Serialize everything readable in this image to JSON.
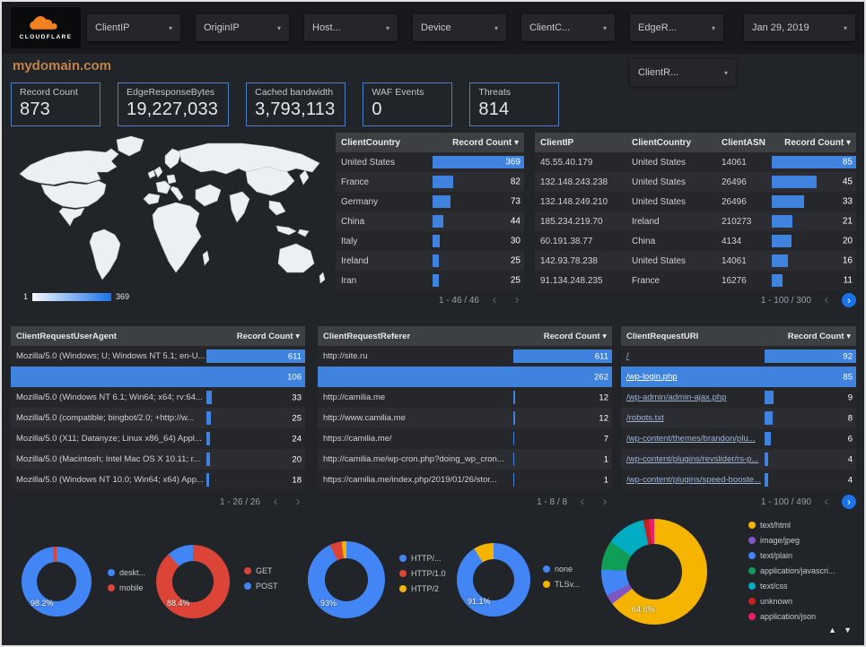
{
  "brand": {
    "name": "CLOUDFLARE"
  },
  "icons": {
    "caret_down": "▾",
    "sort_down": "▾",
    "chevron_left": "‹",
    "chevron_right": "›",
    "up_arrow": "▲",
    "down_arrow": "▼"
  },
  "colors": {
    "accent_blue": "#4083de",
    "kpi_border": "#4e7fc0",
    "brand_orange": "#f48120",
    "brand_orange_light": "#faad3f",
    "title": "#c08448",
    "map_max": "#1a73e8",
    "selected_row": "#4083de"
  },
  "topbar": {
    "filters": [
      "ClientIP",
      "OriginIP",
      "Host...",
      "Device",
      "ClientC...",
      "EdgeR..."
    ],
    "date_filter": "Jan 29, 2019",
    "secondary_filter": "ClientR..."
  },
  "page_title": "mydomain.com",
  "kpis": [
    {
      "label": "Record Count",
      "value": "873"
    },
    {
      "label": "EdgeResponseBytes",
      "value": "19,227,033"
    },
    {
      "label": "Cached bandwidth",
      "value": "3,793,113"
    },
    {
      "label": "WAF Events",
      "value": "0"
    },
    {
      "label": "Threats",
      "value": "814"
    }
  ],
  "tables": {
    "country": {
      "columns": [
        "ClientCountry",
        "Record Count"
      ],
      "sort_col": 1,
      "bar_col": 1,
      "max": 369,
      "selected_row": null,
      "rows": [
        [
          "United States",
          369
        ],
        [
          "France",
          82
        ],
        [
          "Germany",
          73
        ],
        [
          "China",
          44
        ],
        [
          "Italy",
          30
        ],
        [
          "Ireland",
          25
        ],
        [
          "Iran",
          25
        ]
      ],
      "pagination": {
        "range": "1 - 46 / 46",
        "next_active": false
      }
    },
    "clientip": {
      "columns": [
        "ClientIP",
        "ClientCountry",
        "ClientASN",
        "Record Count"
      ],
      "sort_col": 3,
      "bar_col": 3,
      "max": 85,
      "selected_row": null,
      "rows": [
        [
          "45.55.40.179",
          "United States",
          "14061",
          85
        ],
        [
          "132.148.243.238",
          "United States",
          "26496",
          45
        ],
        [
          "132.148.249.210",
          "United States",
          "26496",
          33
        ],
        [
          "185.234.219.70",
          "Ireland",
          "210273",
          21
        ],
        [
          "60.191.38.77",
          "China",
          "4134",
          20
        ],
        [
          "142.93.78.238",
          "United States",
          "14061",
          16
        ],
        [
          "91.134.248.235",
          "France",
          "16276",
          11
        ]
      ],
      "pagination": {
        "range": "1 - 100 / 300",
        "next_active": true
      }
    },
    "useragent": {
      "columns": [
        "ClientRequestUserAgent",
        "Record Count"
      ],
      "sort_col": 1,
      "bar_col": 1,
      "max": 611,
      "selected_row": 1,
      "rows": [
        [
          "Mozilla/5.0 (Windows; U; Windows NT 5.1; en-U...",
          611
        ],
        [
          "",
          106
        ],
        [
          "Mozilla/5.0 (Windows NT 6.1; Win64; x64; rv:64...",
          33
        ],
        [
          "Mozilla/5.0 (compatible; bingbot/2.0; +http://w...",
          25
        ],
        [
          "Mozilla/5.0 (X11; Datanyze; Linux x86_64) Appl...",
          24
        ],
        [
          "Mozilla/5.0 (Macintosh; Intel Mac OS X 10.11; r...",
          20
        ],
        [
          "Mozilla/5.0 (Windows NT 10.0; Win64; x64) App...",
          18
        ]
      ],
      "pagination": {
        "range": "1 - 26 / 26",
        "next_active": false
      }
    },
    "referer": {
      "columns": [
        "ClientRequestReferer",
        "Record Count"
      ],
      "sort_col": 1,
      "bar_col": 1,
      "max": 611,
      "selected_row": 1,
      "rows": [
        [
          "http://site.ru",
          611
        ],
        [
          "",
          262
        ],
        [
          "http://camilia.me",
          12
        ],
        [
          "http://www.camilia.me",
          12
        ],
        [
          "https://camilia.me/",
          7
        ],
        [
          "http://camilia.me/wp-cron.php?doing_wp_cron...",
          1
        ],
        [
          "https://camilia.me/index.php/2019/01/26/stor...",
          1
        ]
      ],
      "pagination": {
        "range": "1 - 8 / 8",
        "next_active": false
      }
    },
    "uri": {
      "columns": [
        "ClientRequestURI",
        "Record Count"
      ],
      "sort_col": 1,
      "bar_col": 1,
      "max": 92,
      "selected_row": 1,
      "link_col": 0,
      "rows": [
        [
          "/",
          92
        ],
        [
          "/wp-login.php",
          85
        ],
        [
          "/wp-admin/admin-ajax.php",
          9
        ],
        [
          "/robots.txt",
          8
        ],
        [
          "/wp-content/themes/brandon/plu...",
          6
        ],
        [
          "/wp-content/plugins/revslider/rs-p...",
          4
        ],
        [
          "/wp-content/plugins/speed-booste...",
          4
        ]
      ],
      "pagination": {
        "range": "1 - 100 / 490",
        "next_active": true
      }
    }
  },
  "chart_data": [
    {
      "type": "heatmap",
      "subtype": "geo-choropleth",
      "name": "client-country-map",
      "data": [
        [
          "United States",
          369
        ],
        [
          "France",
          82
        ],
        [
          "Germany",
          73
        ],
        [
          "China",
          44
        ],
        [
          "Italy",
          30
        ],
        [
          "Ireland",
          25
        ],
        [
          "Iran",
          25
        ]
      ],
      "legend": {
        "min": "1",
        "max": "369"
      },
      "color_range": [
        "#ffffff",
        "#1a73e8"
      ]
    },
    {
      "type": "pie",
      "name": "device-type",
      "center_label": "98.2%",
      "slices": [
        {
          "label": "deskt...",
          "value": 98.2,
          "color": "#4285f4"
        },
        {
          "label": "mobile",
          "value": 1.8,
          "color": "#db4437"
        }
      ]
    },
    {
      "type": "pie",
      "name": "request-method",
      "center_label": "88.4%",
      "slices": [
        {
          "label": "GET",
          "value": 88.4,
          "color": "#db4437"
        },
        {
          "label": "POST",
          "value": 11.6,
          "color": "#4285f4"
        }
      ]
    },
    {
      "type": "pie",
      "name": "request-protocol",
      "center_label": "93%",
      "slices": [
        {
          "label": "HTTP/...",
          "value": 93,
          "color": "#4285f4"
        },
        {
          "label": "HTTP/1.0",
          "value": 5,
          "color": "#db4437"
        },
        {
          "label": "HTTP/2",
          "value": 2,
          "color": "#f4b400"
        }
      ]
    },
    {
      "type": "pie",
      "name": "tls-version",
      "center_label": "91.1%",
      "slices": [
        {
          "label": "none",
          "value": 91.1,
          "color": "#4285f4"
        },
        {
          "label": "TLSv...",
          "value": 8.9,
          "color": "#f4b400"
        }
      ]
    },
    {
      "type": "pie",
      "name": "content-type",
      "center_label": "64.6%",
      "slices": [
        {
          "label": "text/html",
          "value": 64.6,
          "color": "#f4b400"
        },
        {
          "label": "image/jpeg",
          "value": 3,
          "color": "#7e57c2"
        },
        {
          "label": "text/plain",
          "value": 8,
          "color": "#4285f4"
        },
        {
          "label": "application/javascri...",
          "value": 9,
          "color": "#0f9d58"
        },
        {
          "label": "text/css",
          "value": 12,
          "color": "#00acc1"
        },
        {
          "label": "unknown",
          "value": 1.8,
          "color": "#c5221f"
        },
        {
          "label": "application/json",
          "value": 1.6,
          "color": "#e91e63"
        }
      ]
    }
  ],
  "footer": {
    "up": "▲",
    "down": "▼"
  }
}
